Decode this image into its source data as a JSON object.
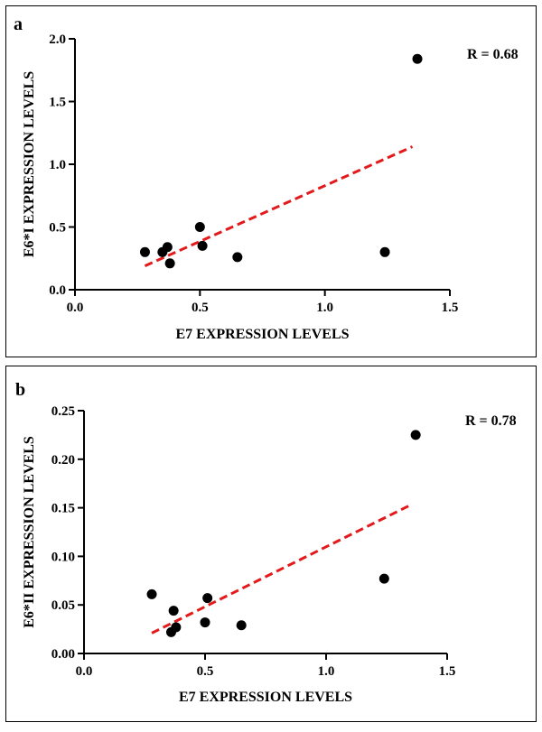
{
  "chart_data": [
    {
      "type": "scatter",
      "panel_label": "a",
      "xlabel": "E7 EXPRESSION LEVELS",
      "ylabel": "E6*I EXPRESSION LEVELS",
      "xlim": [
        0,
        1.5
      ],
      "ylim": [
        0,
        2.0
      ],
      "xticks": [
        "0.0",
        "0.5",
        "1.0",
        "1.5"
      ],
      "yticks": [
        "0.0",
        "0.5",
        "1.0",
        "1.5",
        "2.0"
      ],
      "annotation": "R = 0.68",
      "points": [
        {
          "x": 0.28,
          "y": 0.3
        },
        {
          "x": 0.35,
          "y": 0.3
        },
        {
          "x": 0.37,
          "y": 0.34
        },
        {
          "x": 0.38,
          "y": 0.21
        },
        {
          "x": 0.5,
          "y": 0.5
        },
        {
          "x": 0.51,
          "y": 0.35
        },
        {
          "x": 0.65,
          "y": 0.26
        },
        {
          "x": 1.24,
          "y": 0.3
        },
        {
          "x": 1.37,
          "y": 1.84
        }
      ],
      "trendline": {
        "x0": 0.28,
        "y0": 0.19,
        "x1": 1.35,
        "y1": 1.14,
        "color": "#e31a1c"
      }
    },
    {
      "type": "scatter",
      "panel_label": "b",
      "xlabel": "E7 EXPRESSION LEVELS",
      "ylabel": "E6*II EXPRESSION LEVELS",
      "xlim": [
        0,
        1.5
      ],
      "ylim": [
        0,
        0.25
      ],
      "xticks": [
        "0.0",
        "0.5",
        "1.0",
        "1.5"
      ],
      "yticks": [
        "0.00",
        "0.05",
        "0.10",
        "0.15",
        "0.20",
        "0.25"
      ],
      "annotation": "R = 0.78",
      "points": [
        {
          "x": 0.28,
          "y": 0.061
        },
        {
          "x": 0.36,
          "y": 0.022
        },
        {
          "x": 0.37,
          "y": 0.044
        },
        {
          "x": 0.38,
          "y": 0.027
        },
        {
          "x": 0.5,
          "y": 0.032
        },
        {
          "x": 0.51,
          "y": 0.057
        },
        {
          "x": 0.65,
          "y": 0.029
        },
        {
          "x": 1.24,
          "y": 0.077
        },
        {
          "x": 1.37,
          "y": 0.225
        }
      ],
      "trendline": {
        "x0": 0.28,
        "y0": 0.021,
        "x1": 1.35,
        "y1": 0.153,
        "color": "#e31a1c"
      }
    }
  ]
}
